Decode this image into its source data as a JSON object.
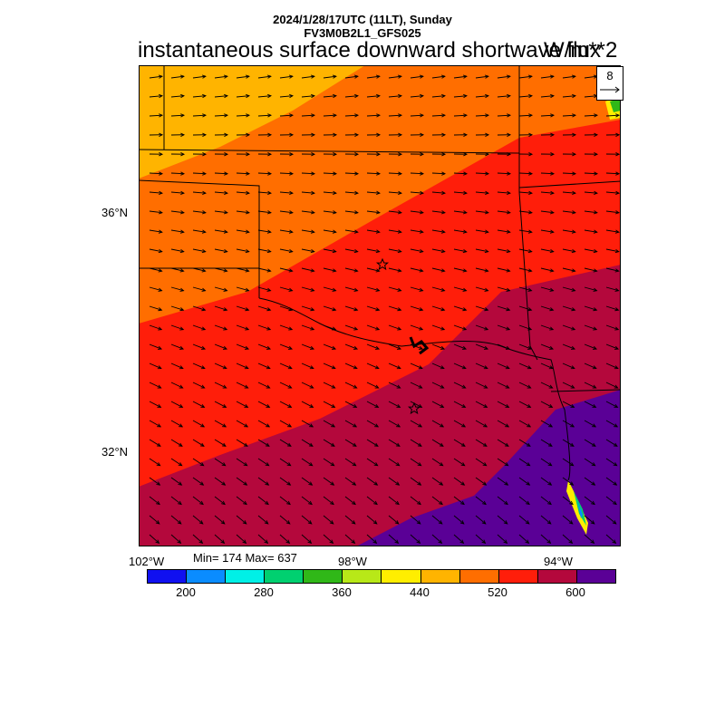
{
  "header": {
    "line1": "2024/1/28/17UTC (11LT), Sunday",
    "line2": "FV3M0B2L1_GFS025",
    "title": "instantaneous surface downward shortwave flux",
    "units": "W/m**2"
  },
  "stats": {
    "text": "Min= 174 Max= 637",
    "min": 174,
    "max": 637
  },
  "reference_vector": {
    "value": "8"
  },
  "lat_labels": [
    "36°N",
    "32°N"
  ],
  "lon_labels": [
    "102°W",
    "98°W",
    "94°W"
  ],
  "colorbar": {
    "colors": [
      "#1010f0",
      "#0a8cff",
      "#00f0e6",
      "#00d070",
      "#30b818",
      "#b8e818",
      "#ffee00",
      "#ffb400",
      "#ff6e00",
      "#ff1e0a",
      "#b4083c",
      "#5a0096"
    ],
    "labels": [
      "200",
      "280",
      "360",
      "440",
      "520",
      "600"
    ]
  },
  "markers": [
    "star",
    "star"
  ]
}
